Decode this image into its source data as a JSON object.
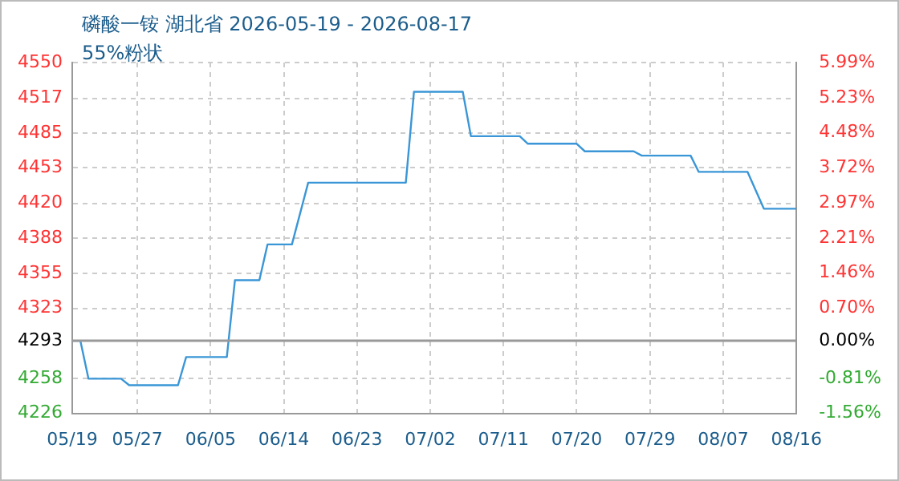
{
  "chart_data": {
    "type": "line",
    "title": "磷酸一铵 湖北省 2026-05-19 - 2026-08-17",
    "subtitle": "55%粉状",
    "x": [
      "2026-05-19",
      "2026-05-20",
      "2026-05-21",
      "2026-05-25",
      "2026-05-26",
      "2026-06-01",
      "2026-06-02",
      "2026-06-07",
      "2026-06-08",
      "2026-06-11",
      "2026-06-12",
      "2026-06-15",
      "2026-06-17",
      "2026-06-29",
      "2026-06-30",
      "2026-07-06",
      "2026-07-07",
      "2026-07-13",
      "2026-07-14",
      "2026-07-20",
      "2026-07-21",
      "2026-07-27",
      "2026-07-28",
      "2026-08-03",
      "2026-08-04",
      "2026-08-10",
      "2026-08-12",
      "2026-08-16"
    ],
    "series": [
      {
        "color": "#3a96d6",
        "values": [
          4293,
          4293,
          4258,
          4258,
          4252,
          4252,
          4278,
          4278,
          4349,
          4349,
          4382,
          4382,
          4439,
          4439,
          4523,
          4523,
          4482,
          4482,
          4475,
          4475,
          4468,
          4468,
          4464,
          4464,
          4449,
          4449,
          4415,
          4415
        ]
      }
    ],
    "xlim": [
      "2026-05-19",
      "2026-08-16"
    ],
    "xticks": [
      {
        "value": "2026-05-19",
        "label": "05/19"
      },
      {
        "value": "2026-05-27",
        "label": "05/27"
      },
      {
        "value": "2026-06-05",
        "label": "06/05"
      },
      {
        "value": "2026-06-14",
        "label": "06/14"
      },
      {
        "value": "2026-06-23",
        "label": "06/23"
      },
      {
        "value": "2026-07-02",
        "label": "07/02"
      },
      {
        "value": "2026-07-11",
        "label": "07/11"
      },
      {
        "value": "2026-07-20",
        "label": "07/20"
      },
      {
        "value": "2026-07-29",
        "label": "07/29"
      },
      {
        "value": "2026-08-07",
        "label": "08/07"
      },
      {
        "value": "2026-08-16",
        "label": "08/16"
      }
    ],
    "ylim": [
      4226,
      4550
    ],
    "yticks": [
      4226,
      4258,
      4293,
      4323,
      4355,
      4388,
      4420,
      4453,
      4485,
      4517,
      4550
    ],
    "y2lim": [
      -1.56,
      5.99
    ],
    "y2ticks": [
      {
        "value": -1.56,
        "label": "-1.56%"
      },
      {
        "value": -0.81,
        "label": "-0.81%"
      },
      {
        "value": 0,
        "label": "0.00%"
      },
      {
        "value": 0.7,
        "label": "0.70%"
      },
      {
        "value": 1.46,
        "label": "1.46%"
      },
      {
        "value": 2.21,
        "label": "2.21%"
      },
      {
        "value": 2.97,
        "label": "2.97%"
      },
      {
        "value": 3.72,
        "label": "3.72%"
      },
      {
        "value": 4.48,
        "label": "4.48%"
      },
      {
        "value": 5.23,
        "label": "5.23%"
      },
      {
        "value": 5.99,
        "label": "5.99%"
      }
    ],
    "ref_lines": [
      {
        "axis": "y",
        "value": 4293,
        "color": "#999999"
      }
    ],
    "grid": true,
    "legend": false,
    "marker": "none",
    "line_style": "solid"
  }
}
